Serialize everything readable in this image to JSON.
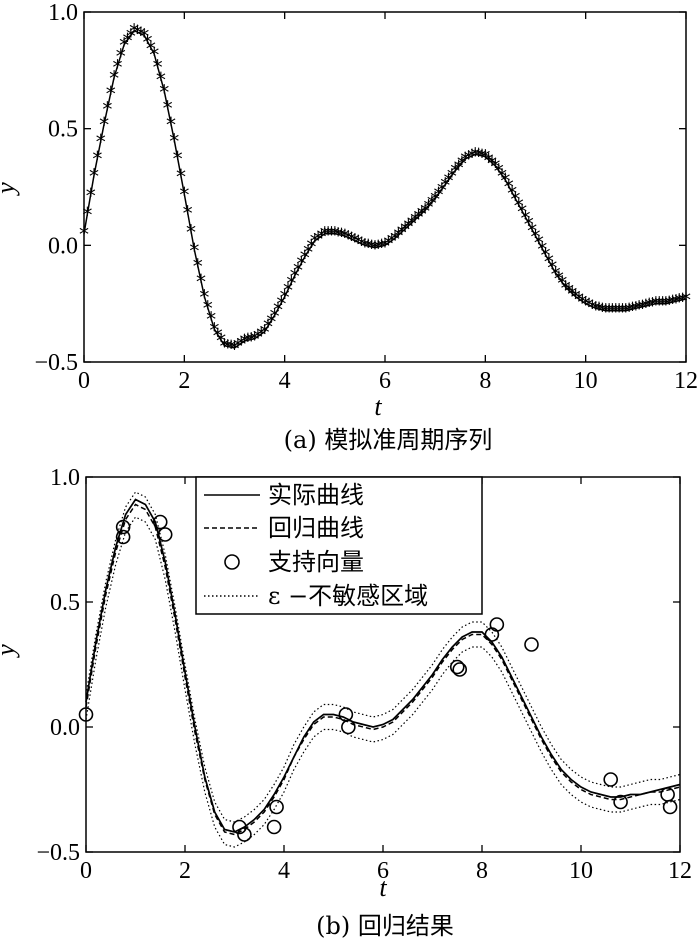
{
  "chart_data": [
    {
      "type": "line",
      "caption": "(a) 模拟准周期序列",
      "xlabel": "t",
      "ylabel": "y",
      "xlim": [
        0,
        12
      ],
      "ylim": [
        -0.5,
        1.0
      ],
      "xticks": [
        "0",
        "2",
        "4",
        "6",
        "8",
        "10",
        "12"
      ],
      "yticks": [
        "−0.5",
        "0.0",
        "0.5",
        "1.0"
      ],
      "marker_glyph": "*",
      "series": [
        {
          "x": [
            0,
            0.2,
            0.4,
            0.6,
            0.8,
            1.0,
            1.2,
            1.4,
            1.6,
            1.8,
            2.0,
            2.2,
            2.4,
            2.6,
            2.8,
            3.0,
            3.2,
            3.4,
            3.6,
            3.8,
            4.0,
            4.2,
            4.4,
            4.6,
            4.8,
            5.0,
            5.2,
            5.4,
            5.6,
            5.8,
            6.0,
            6.2,
            6.4,
            6.6,
            6.8,
            7.0,
            7.2,
            7.4,
            7.6,
            7.8,
            8.0,
            8.2,
            8.4,
            8.6,
            8.8,
            9.0,
            9.2,
            9.4,
            9.6,
            9.8,
            10.0,
            10.2,
            10.4,
            10.6,
            10.8,
            11.0,
            11.2,
            11.4,
            11.6,
            11.8,
            12.0
          ],
          "y": [
            0.05,
            0.3,
            0.52,
            0.72,
            0.86,
            0.92,
            0.9,
            0.82,
            0.66,
            0.45,
            0.22,
            -0.02,
            -0.22,
            -0.36,
            -0.43,
            -0.44,
            -0.41,
            -0.4,
            -0.37,
            -0.3,
            -0.22,
            -0.13,
            -0.05,
            0.02,
            0.05,
            0.05,
            0.04,
            0.02,
            0.0,
            -0.01,
            0.0,
            0.03,
            0.07,
            0.11,
            0.15,
            0.2,
            0.26,
            0.32,
            0.37,
            0.39,
            0.38,
            0.34,
            0.28,
            0.2,
            0.12,
            0.04,
            -0.04,
            -0.12,
            -0.18,
            -0.22,
            -0.25,
            -0.27,
            -0.28,
            -0.28,
            -0.28,
            -0.27,
            -0.26,
            -0.25,
            -0.25,
            -0.24,
            -0.23
          ]
        }
      ]
    },
    {
      "type": "line",
      "caption": "(b) 回归结果",
      "xlabel": "t",
      "ylabel": "y",
      "xlim": [
        0,
        12
      ],
      "ylim": [
        -0.5,
        1.0
      ],
      "xticks": [
        "0",
        "2",
        "4",
        "6",
        "8",
        "10",
        "12"
      ],
      "yticks": [
        "−0.5",
        "0.0",
        "0.5",
        "1.0"
      ],
      "legend_position": "top-center",
      "legend": [
        "实际曲线",
        "回归曲线",
        "支持向量",
        "ε −不敏感区域"
      ],
      "epsilon": 0.05,
      "actual": {
        "x": [
          0,
          0.2,
          0.4,
          0.6,
          0.8,
          1.0,
          1.2,
          1.4,
          1.6,
          1.8,
          2.0,
          2.2,
          2.4,
          2.6,
          2.8,
          3.0,
          3.2,
          3.4,
          3.6,
          3.8,
          4.0,
          4.2,
          4.4,
          4.6,
          4.8,
          5.0,
          5.2,
          5.4,
          5.6,
          5.8,
          6.0,
          6.2,
          6.4,
          6.6,
          6.8,
          7.0,
          7.2,
          7.4,
          7.6,
          7.8,
          8.0,
          8.2,
          8.4,
          8.6,
          8.8,
          9.0,
          9.2,
          9.4,
          9.6,
          9.8,
          10.0,
          10.2,
          10.4,
          10.6,
          10.8,
          11.0,
          11.2,
          11.4,
          11.6,
          11.8,
          12.0
        ],
        "y": [
          0.1,
          0.34,
          0.55,
          0.72,
          0.85,
          0.91,
          0.89,
          0.82,
          0.66,
          0.45,
          0.22,
          0.0,
          -0.2,
          -0.34,
          -0.41,
          -0.42,
          -0.4,
          -0.37,
          -0.33,
          -0.27,
          -0.2,
          -0.12,
          -0.04,
          0.02,
          0.05,
          0.05,
          0.04,
          0.02,
          0.01,
          0.0,
          0.01,
          0.03,
          0.07,
          0.11,
          0.16,
          0.21,
          0.27,
          0.32,
          0.36,
          0.38,
          0.38,
          0.34,
          0.28,
          0.2,
          0.12,
          0.04,
          -0.04,
          -0.11,
          -0.17,
          -0.21,
          -0.24,
          -0.26,
          -0.27,
          -0.28,
          -0.28,
          -0.27,
          -0.27,
          -0.26,
          -0.25,
          -0.24,
          -0.23
        ]
      },
      "regression": {
        "x": [
          0,
          0.2,
          0.4,
          0.6,
          0.8,
          1.0,
          1.2,
          1.4,
          1.6,
          1.8,
          2.0,
          2.2,
          2.4,
          2.6,
          2.8,
          3.0,
          3.2,
          3.4,
          3.6,
          3.8,
          4.0,
          4.2,
          4.4,
          4.6,
          4.8,
          5.0,
          5.2,
          5.4,
          5.6,
          5.8,
          6.0,
          6.2,
          6.4,
          6.6,
          6.8,
          7.0,
          7.2,
          7.4,
          7.6,
          7.8,
          8.0,
          8.2,
          8.4,
          8.6,
          8.8,
          9.0,
          9.2,
          9.4,
          9.6,
          9.8,
          10.0,
          10.2,
          10.4,
          10.6,
          10.8,
          11.0,
          11.2,
          11.4,
          11.6,
          11.8,
          12.0
        ],
        "y": [
          0.08,
          0.32,
          0.53,
          0.7,
          0.83,
          0.89,
          0.87,
          0.8,
          0.64,
          0.43,
          0.2,
          -0.02,
          -0.21,
          -0.35,
          -0.42,
          -0.43,
          -0.41,
          -0.38,
          -0.34,
          -0.28,
          -0.21,
          -0.12,
          -0.05,
          0.01,
          0.04,
          0.04,
          0.03,
          0.01,
          0.0,
          -0.01,
          0.0,
          0.02,
          0.06,
          0.1,
          0.15,
          0.2,
          0.26,
          0.31,
          0.35,
          0.37,
          0.37,
          0.33,
          0.27,
          0.19,
          0.11,
          0.03,
          -0.05,
          -0.12,
          -0.18,
          -0.22,
          -0.25,
          -0.27,
          -0.28,
          -0.29,
          -0.29,
          -0.28,
          -0.27,
          -0.26,
          -0.26,
          -0.25,
          -0.24
        ]
      },
      "support_vectors": {
        "x": [
          0,
          0.75,
          0.75,
          1.5,
          1.6,
          3.1,
          3.2,
          3.8,
          3.85,
          5.25,
          5.3,
          7.5,
          7.55,
          8.2,
          8.3,
          9.0,
          10.6,
          10.8,
          11.75,
          11.8
        ],
        "y": [
          0.05,
          0.76,
          0.8,
          0.82,
          0.77,
          -0.4,
          -0.43,
          -0.4,
          -0.32,
          0.05,
          0.0,
          0.24,
          0.23,
          0.37,
          0.41,
          0.33,
          -0.21,
          -0.3,
          -0.27,
          -0.32
        ]
      }
    }
  ]
}
